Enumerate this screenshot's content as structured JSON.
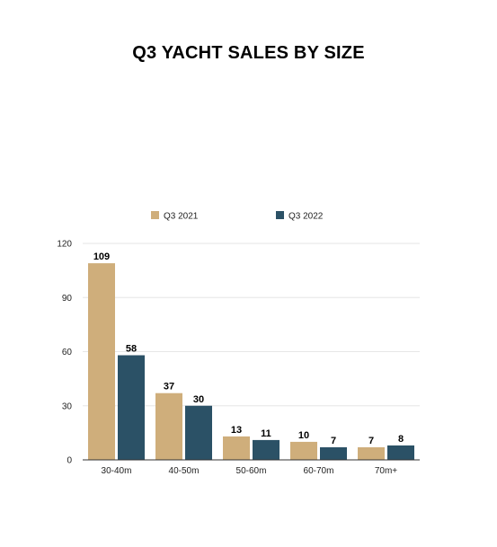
{
  "chart_data": {
    "type": "bar",
    "title": "Q3 YACHT SALES BY SIZE",
    "categories": [
      "30-40m",
      "40-50m",
      "50-60m",
      "60-70m",
      "70m+"
    ],
    "series": [
      {
        "name": "Q3 2021",
        "color": "#cfae7b",
        "values": [
          109,
          37,
          13,
          10,
          7
        ]
      },
      {
        "name": "Q3 2022",
        "color": "#2b5166",
        "values": [
          58,
          30,
          11,
          7,
          8
        ]
      }
    ],
    "yticks": [
      0,
      30,
      60,
      90,
      120
    ],
    "ylim": [
      0,
      120
    ],
    "grid": true,
    "legend": "top",
    "xlabel": "",
    "ylabel": ""
  }
}
